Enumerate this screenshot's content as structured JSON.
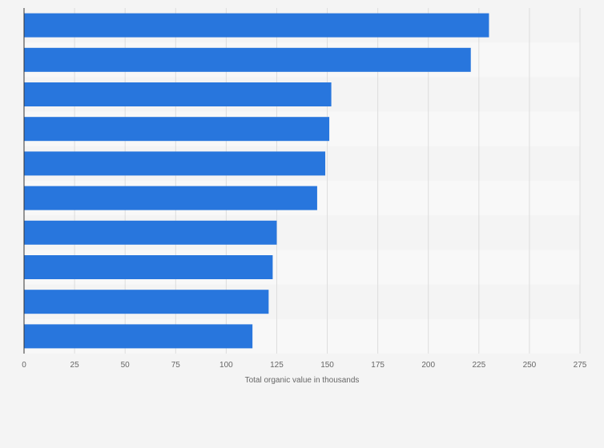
{
  "chart_data": {
    "type": "bar",
    "orientation": "horizontal",
    "categories": [
      "",
      "",
      "",
      "",
      "",
      "",
      "",
      "",
      "",
      ""
    ],
    "values": [
      230,
      221,
      152,
      151,
      149,
      145,
      125,
      123,
      121,
      113
    ],
    "title": "",
    "xlabel": "Total organic value in thousands",
    "ylabel": "",
    "xlim": [
      0,
      275
    ],
    "xticks": [
      0,
      25,
      50,
      75,
      100,
      125,
      150,
      175,
      200,
      225,
      250,
      275
    ],
    "xtick_labels": [
      "0",
      "25",
      "50",
      "75",
      "100",
      "125",
      "150",
      "175",
      "200",
      "225",
      "250",
      "275"
    ],
    "grid": "vertical",
    "bar_color": "#2876dd"
  }
}
